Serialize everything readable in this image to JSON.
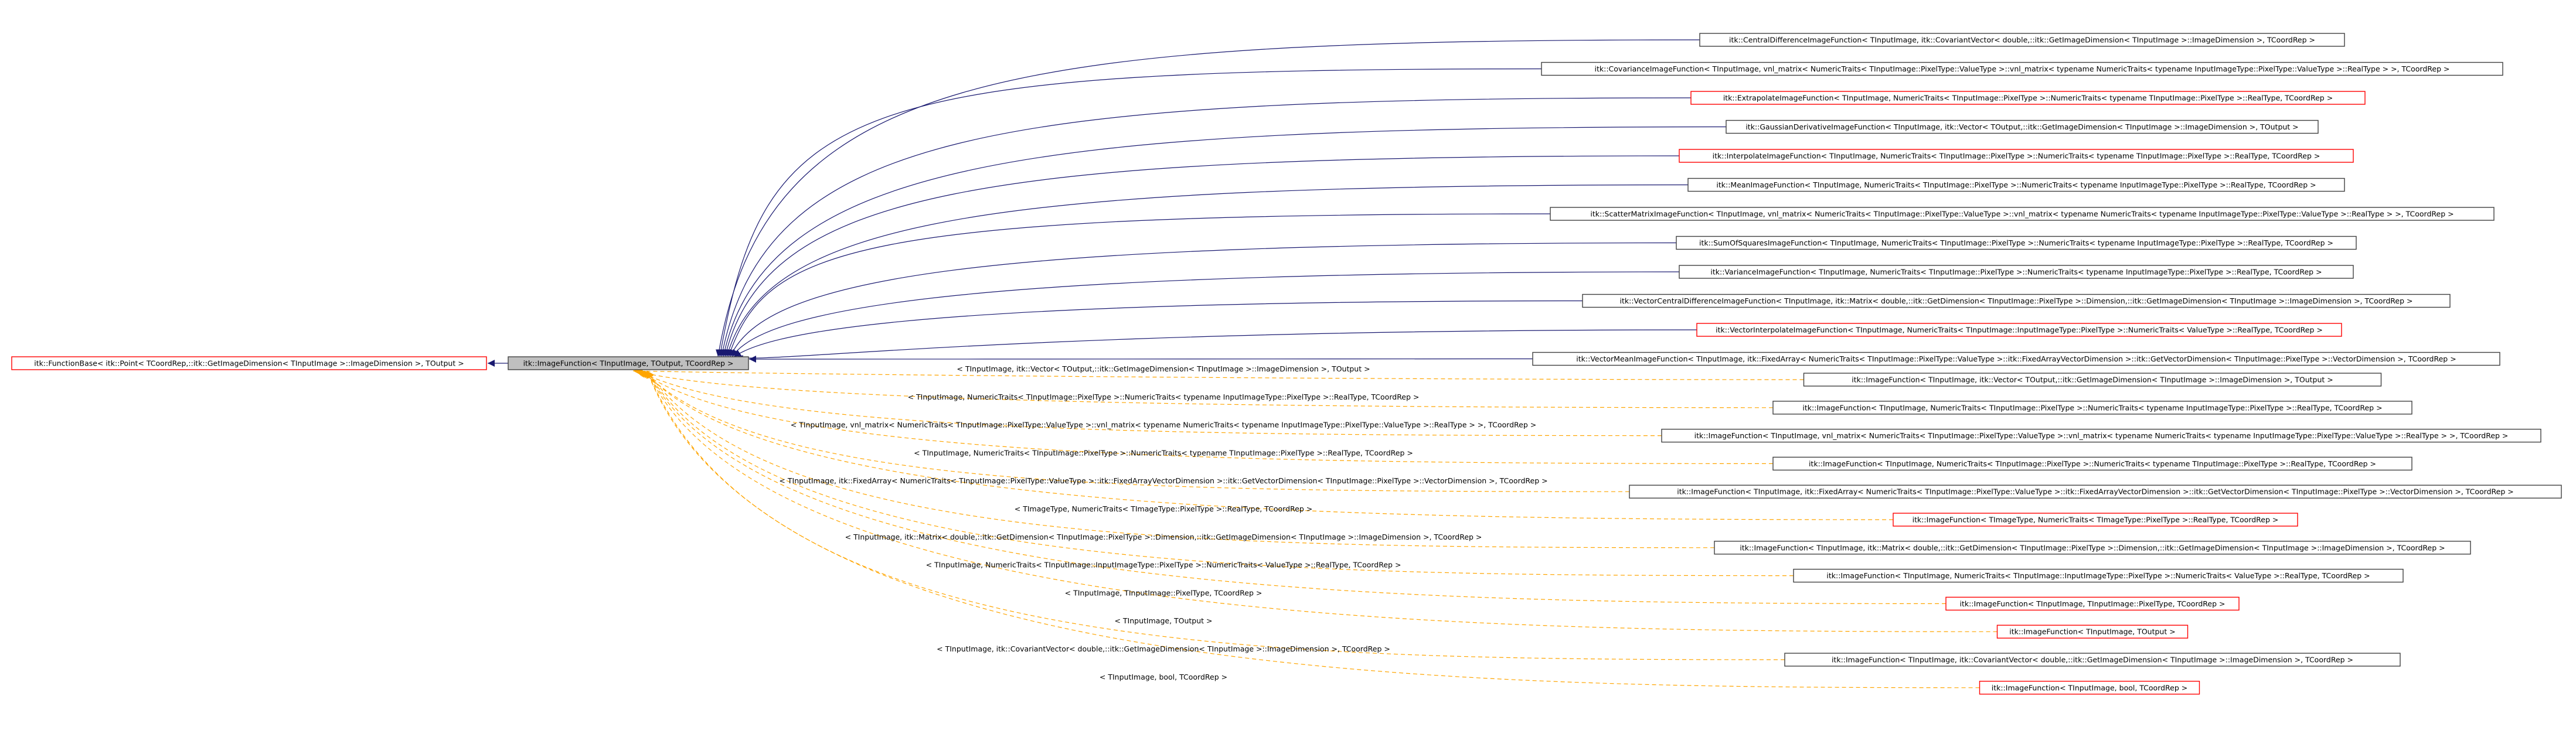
{
  "colors": {
    "background": "#ffffff",
    "box_fill": "#ffffff",
    "box_border_documented": "#404040",
    "box_border_undocumented": "#ff0000",
    "focus_fill": "#bfbfbf",
    "inheritance_edge": "#191970",
    "template_edge": "#ffa500"
  },
  "base_class": {
    "label": "itk::FunctionBase< itk::Point< TCoordRep,::itk::GetImageDimension< TInputImage >::ImageDimension >, TOutput >",
    "border": "red"
  },
  "focus_class": {
    "label": "itk::ImageFunction< TInputImage, TOutput, TCoordRep >"
  },
  "derived_classes": [
    {
      "label": "itk::CentralDifferenceImageFunction< TInputImage, itk::CovariantVector< double,::itk::GetImageDimension< TInputImage >::ImageDimension >, TCoordRep >",
      "border": "gray"
    },
    {
      "label": "itk::CovarianceImageFunction< TInputImage, vnl_matrix< NumericTraits< TInputImage::PixelType::ValueType >::vnl_matrix< typename NumericTraits< typename InputImageType::PixelType::ValueType >::RealType > >, TCoordRep >",
      "border": "gray"
    },
    {
      "label": "itk::ExtrapolateImageFunction< TInputImage, NumericTraits< TInputImage::PixelType >::NumericTraits< typename TInputImage::PixelType >::RealType, TCoordRep >",
      "border": "red"
    },
    {
      "label": "itk::GaussianDerivativeImageFunction< TInputImage, itk::Vector< TOutput,::itk::GetImageDimension< TInputImage >::ImageDimension >, TOutput >",
      "border": "gray"
    },
    {
      "label": "itk::InterpolateImageFunction< TInputImage, NumericTraits< TInputImage::PixelType >::NumericTraits< typename TInputImage::PixelType >::RealType, TCoordRep >",
      "border": "red"
    },
    {
      "label": "itk::MeanImageFunction< TInputImage, NumericTraits< TInputImage::PixelType >::NumericTraits< typename InputImageType::PixelType >::RealType, TCoordRep >",
      "border": "gray"
    },
    {
      "label": "itk::ScatterMatrixImageFunction< TInputImage, vnl_matrix< NumericTraits< TInputImage::PixelType::ValueType >::vnl_matrix< typename NumericTraits< typename InputImageType::PixelType::ValueType >::RealType > >, TCoordRep >",
      "border": "gray"
    },
    {
      "label": "itk::SumOfSquaresImageFunction< TInputImage, NumericTraits< TInputImage::PixelType >::NumericTraits< typename InputImageType::PixelType >::RealType, TCoordRep >",
      "border": "gray"
    },
    {
      "label": "itk::VarianceImageFunction< TInputImage, NumericTraits< TInputImage::PixelType >::NumericTraits< typename InputImageType::PixelType >::RealType, TCoordRep >",
      "border": "gray"
    },
    {
      "label": "itk::VectorCentralDifferenceImageFunction< TInputImage, itk::Matrix< double,::itk::GetDimension< TInputImage::PixelType >::Dimension,::itk::GetImageDimension< TInputImage >::ImageDimension >, TCoordRep >",
      "border": "gray"
    },
    {
      "label": "itk::VectorInterpolateImageFunction< TInputImage, NumericTraits< TInputImage::InputImageType::PixelType >::NumericTraits< ValueType >::RealType, TCoordRep >",
      "border": "red"
    },
    {
      "label": "itk::VectorMeanImageFunction< TInputImage, itk::FixedArray< NumericTraits< TInputImage::PixelType::ValueType >::itk::FixedArrayVectorDimension >::itk::GetVectorDimension< TInputImage::PixelType >::VectorDimension >, TCoordRep >",
      "border": "gray"
    }
  ],
  "instantiations": [
    {
      "edge_label": "< TInputImage, itk::Vector< TOutput,::itk::GetImageDimension< TInputImage >::ImageDimension >, TOutput >",
      "label": "itk::ImageFunction< TInputImage, itk::Vector< TOutput,::itk::GetImageDimension< TInputImage >::ImageDimension >, TOutput >",
      "border": "gray"
    },
    {
      "edge_label": "< TInputImage, NumericTraits< TInputImage::PixelType >::NumericTraits< typename InputImageType::PixelType >::RealType, TCoordRep >",
      "label": "itk::ImageFunction< TInputImage, NumericTraits< TInputImage::PixelType >::NumericTraits< typename InputImageType::PixelType >::RealType, TCoordRep >",
      "border": "gray"
    },
    {
      "edge_label": "< TInputImage, vnl_matrix< NumericTraits< TInputImage::PixelType::ValueType >::vnl_matrix< typename NumericTraits< typename InputImageType::PixelType::ValueType >::RealType > >, TCoordRep >",
      "label": "itk::ImageFunction< TInputImage, vnl_matrix< NumericTraits< TInputImage::PixelType::ValueType >::vnl_matrix< typename NumericTraits< typename InputImageType::PixelType::ValueType >::RealType > >, TCoordRep >",
      "border": "gray"
    },
    {
      "edge_label": "< TInputImage, NumericTraits< TInputImage::PixelType >::NumericTraits< typename TInputImage::PixelType >::RealType, TCoordRep >",
      "label": "itk::ImageFunction< TInputImage, NumericTraits< TInputImage::PixelType >::NumericTraits< typename TInputImage::PixelType >::RealType, TCoordRep >",
      "border": "gray"
    },
    {
      "edge_label": "< TInputImage, itk::FixedArray< NumericTraits< TInputImage::PixelType::ValueType >::itk::FixedArrayVectorDimension >::itk::GetVectorDimension< TInputImage::PixelType >::VectorDimension >, TCoordRep >",
      "label": "itk::ImageFunction< TInputImage, itk::FixedArray< NumericTraits< TInputImage::PixelType::ValueType >::itk::FixedArrayVectorDimension >::itk::GetVectorDimension< TInputImage::PixelType >::VectorDimension >, TCoordRep >",
      "border": "gray"
    },
    {
      "edge_label": "< TImageType, NumericTraits< TImageType::PixelType >::RealType, TCoordRep >",
      "label": "itk::ImageFunction< TImageType, NumericTraits< TImageType::PixelType >::RealType, TCoordRep >",
      "border": "red"
    },
    {
      "edge_label": "< TInputImage, itk::Matrix< double,::itk::GetDimension< TInputImage::PixelType >::Dimension,::itk::GetImageDimension< TInputImage >::ImageDimension >, TCoordRep >",
      "label": "itk::ImageFunction< TInputImage, itk::Matrix< double,::itk::GetDimension< TInputImage::PixelType >::Dimension,::itk::GetImageDimension< TInputImage >::ImageDimension >, TCoordRep >",
      "border": "gray"
    },
    {
      "edge_label": "< TInputImage, NumericTraits< TInputImage::InputImageType::PixelType >::NumericTraits< ValueType >::RealType, TCoordRep >",
      "label": "itk::ImageFunction< TInputImage, NumericTraits< TInputImage::InputImageType::PixelType >::NumericTraits< ValueType >::RealType, TCoordRep >",
      "border": "gray"
    },
    {
      "edge_label": "< TInputImage, TInputImage::PixelType, TCoordRep >",
      "label": "itk::ImageFunction< TInputImage, TInputImage::PixelType, TCoordRep >",
      "border": "red"
    },
    {
      "edge_label": "< TInputImage, TOutput >",
      "label": "itk::ImageFunction< TInputImage, TOutput >",
      "border": "red"
    },
    {
      "edge_label": "< TInputImage, itk::CovariantVector< double,::itk::GetImageDimension< TInputImage >::ImageDimension >, TCoordRep >",
      "label": "itk::ImageFunction< TInputImage, itk::CovariantVector< double,::itk::GetImageDimension< TInputImage >::ImageDimension >, TCoordRep >",
      "border": "gray"
    },
    {
      "edge_label": "< TInputImage, bool, TCoordRep >",
      "label": "itk::ImageFunction< TInputImage, bool, TCoordRep >",
      "border": "red"
    }
  ]
}
